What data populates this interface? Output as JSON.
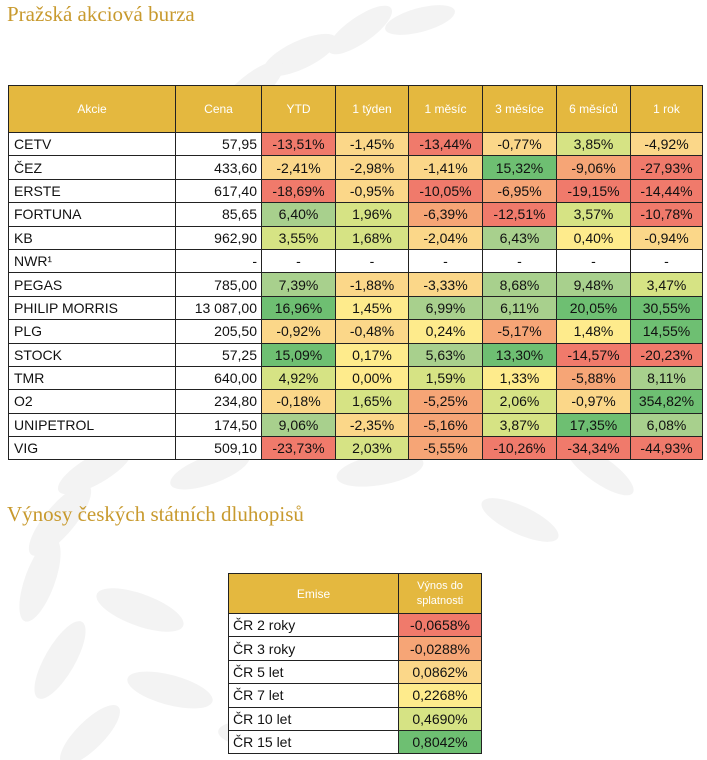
{
  "colors": {
    "accent_gold": "#e4b83f",
    "title_gold": "#c89a2e",
    "scale": {
      "very_negative": "#f07a6b",
      "negative": "#f6a576",
      "slightly_negative": "#fbd789",
      "neutral": "#feeb8c",
      "slightly_positive": "#d6e384",
      "positive": "#a8d08d",
      "very_positive": "#6ebf72",
      "na": "#ffffff"
    }
  },
  "stocks": {
    "title": "Pražská akciová burza",
    "columns": [
      "Akcie",
      "Cena",
      "YTD",
      "1 týden",
      "1 měsíc",
      "3 měsíce",
      "6 měsíců",
      "1 rok"
    ],
    "rows": [
      {
        "name": "CETV",
        "price": "57,95",
        "values": [
          "-13,51%",
          "-1,45%",
          "-13,44%",
          "-0,77%",
          "3,85%",
          "-4,92%"
        ]
      },
      {
        "name": "ČEZ",
        "price": "433,60",
        "values": [
          "-2,41%",
          "-2,98%",
          "-1,41%",
          "15,32%",
          "-9,06%",
          "-27,93%"
        ]
      },
      {
        "name": "ERSTE",
        "price": "617,40",
        "values": [
          "-18,69%",
          "-0,95%",
          "-10,05%",
          "-6,95%",
          "-19,15%",
          "-14,44%"
        ]
      },
      {
        "name": "FORTUNA",
        "price": "85,65",
        "values": [
          "6,40%",
          "1,96%",
          "-6,39%",
          "-12,51%",
          "3,57%",
          "-10,78%"
        ]
      },
      {
        "name": "KB",
        "price": "962,90",
        "values": [
          "3,55%",
          "1,68%",
          "-2,04%",
          "6,43%",
          "0,40%",
          "-0,94%"
        ]
      },
      {
        "name": "NWR¹",
        "price": "-",
        "values": [
          "-",
          "-",
          "-",
          "-",
          "-",
          "-"
        ]
      },
      {
        "name": "PEGAS",
        "price": "785,00",
        "values": [
          "7,39%",
          "-1,88%",
          "-3,33%",
          "8,68%",
          "9,48%",
          "3,47%"
        ]
      },
      {
        "name": "PHILIP MORRIS",
        "price": "13 087,00",
        "values": [
          "16,96%",
          "1,45%",
          "6,99%",
          "6,11%",
          "20,05%",
          "30,55%"
        ]
      },
      {
        "name": "PLG",
        "price": "205,50",
        "values": [
          "-0,92%",
          "-0,48%",
          "0,24%",
          "-5,17%",
          "1,48%",
          "14,55%"
        ]
      },
      {
        "name": "STOCK",
        "price": "57,25",
        "values": [
          "15,09%",
          "0,17%",
          "5,63%",
          "13,30%",
          "-14,57%",
          "-20,23%"
        ]
      },
      {
        "name": "TMR",
        "price": "640,00",
        "values": [
          "4,92%",
          "0,00%",
          "1,59%",
          "1,33%",
          "-5,88%",
          "8,11%"
        ]
      },
      {
        "name": "O2",
        "price": "234,80",
        "values": [
          "-0,18%",
          "1,65%",
          "-5,25%",
          "2,06%",
          "-0,97%",
          "354,82%"
        ]
      },
      {
        "name": "UNIPETROL",
        "price": "174,50",
        "values": [
          "9,06%",
          "-2,35%",
          "-5,16%",
          "3,87%",
          "17,35%",
          "6,08%"
        ]
      },
      {
        "name": "VIG",
        "price": "509,10",
        "values": [
          "-23,73%",
          "2,03%",
          "-5,55%",
          "-10,26%",
          "-34,34%",
          "-44,93%"
        ]
      }
    ]
  },
  "bonds": {
    "title": "Výnosy českých státních dluhopisů",
    "columns": [
      "Emise",
      "Výnos do splatnosti"
    ],
    "rows": [
      {
        "name": "ČR 2 roky",
        "value": "-0,0658%"
      },
      {
        "name": "ČR 3 roky",
        "value": "-0,0288%"
      },
      {
        "name": "ČR 5 let",
        "value": "0,0862%"
      },
      {
        "name": "ČR 7 let",
        "value": "0,2268%"
      },
      {
        "name": "ČR 10 let",
        "value": "0,4690%"
      },
      {
        "name": "ČR 15 let",
        "value": "0,8042%"
      }
    ]
  }
}
